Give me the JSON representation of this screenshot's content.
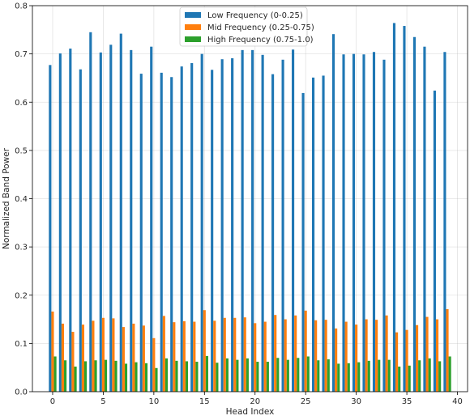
{
  "chart_data": {
    "type": "bar",
    "xlabel": "Head Index",
    "ylabel": "Normalized Band Power",
    "xlim": [
      -2,
      41
    ],
    "ylim": [
      0,
      0.8
    ],
    "x_ticks": [
      0,
      5,
      10,
      15,
      20,
      25,
      30,
      35,
      40
    ],
    "y_ticks": [
      0.0,
      0.1,
      0.2,
      0.3,
      0.4,
      0.5,
      0.6,
      0.7,
      0.8
    ],
    "grid": true,
    "legend_position": "top-center",
    "x": [
      0,
      1,
      2,
      3,
      4,
      5,
      6,
      7,
      8,
      9,
      10,
      11,
      12,
      13,
      14,
      15,
      16,
      17,
      18,
      19,
      20,
      21,
      22,
      23,
      24,
      25,
      26,
      27,
      28,
      29,
      30,
      31,
      32,
      33,
      34,
      35,
      36,
      37,
      38,
      39
    ],
    "series": [
      {
        "name": "Low Frequency (0-0.25)",
        "color": "#1f77b4",
        "values": [
          0.677,
          0.701,
          0.711,
          0.668,
          0.745,
          0.703,
          0.719,
          0.742,
          0.708,
          0.659,
          0.715,
          0.661,
          0.652,
          0.674,
          0.681,
          0.7,
          0.667,
          0.689,
          0.691,
          0.708,
          0.708,
          0.698,
          0.658,
          0.688,
          0.709,
          0.619,
          0.651,
          0.655,
          0.741,
          0.699,
          0.7,
          0.699,
          0.704,
          0.688,
          0.764,
          0.758,
          0.735,
          0.715,
          0.624,
          0.704
        ]
      },
      {
        "name": "Mid Frequency (0.25-0.75)",
        "color": "#ff7f0e",
        "values": [
          0.166,
          0.141,
          0.124,
          0.139,
          0.147,
          0.153,
          0.152,
          0.134,
          0.141,
          0.137,
          0.111,
          0.157,
          0.144,
          0.146,
          0.145,
          0.169,
          0.147,
          0.153,
          0.153,
          0.154,
          0.142,
          0.145,
          0.159,
          0.15,
          0.158,
          0.168,
          0.148,
          0.149,
          0.131,
          0.145,
          0.139,
          0.15,
          0.149,
          0.158,
          0.123,
          0.128,
          0.138,
          0.155,
          0.15,
          0.171
        ]
      },
      {
        "name": "High Frequency (0.75-1.0)",
        "color": "#2ca02c",
        "values": [
          0.073,
          0.065,
          0.052,
          0.063,
          0.065,
          0.066,
          0.064,
          0.058,
          0.061,
          0.059,
          0.049,
          0.069,
          0.064,
          0.063,
          0.062,
          0.074,
          0.06,
          0.069,
          0.066,
          0.069,
          0.062,
          0.062,
          0.07,
          0.066,
          0.07,
          0.073,
          0.065,
          0.067,
          0.058,
          0.059,
          0.061,
          0.064,
          0.066,
          0.066,
          0.052,
          0.054,
          0.065,
          0.069,
          0.063,
          0.073
        ]
      }
    ]
  }
}
